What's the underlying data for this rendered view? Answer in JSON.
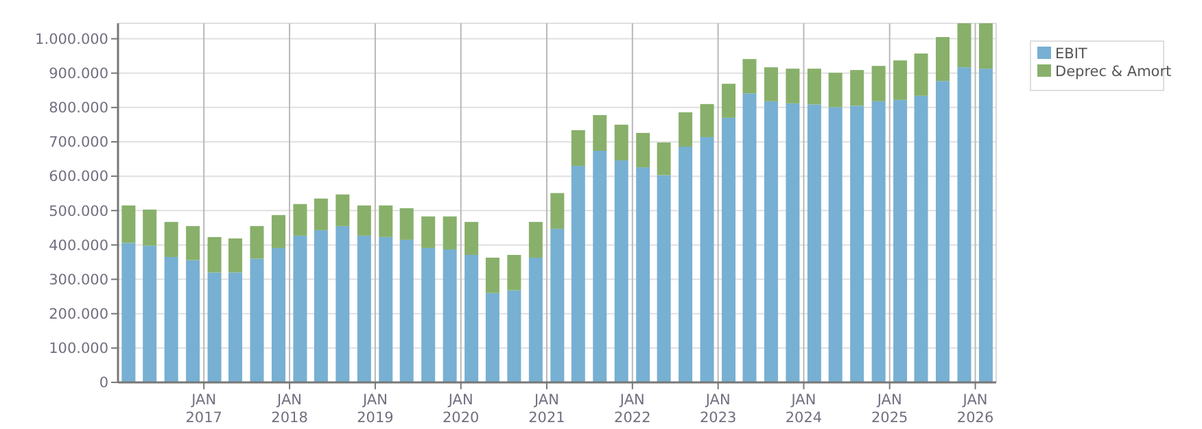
{
  "chart_data": {
    "type": "bar",
    "stacked": true,
    "x": [
      "2016-02-15",
      "2016-05-15",
      "2016-08-15",
      "2016-11-15",
      "2017-02-15",
      "2017-05-15",
      "2017-08-15",
      "2017-11-15",
      "2018-02-15",
      "2018-05-15",
      "2018-08-15",
      "2018-11-15",
      "2019-02-15",
      "2019-05-15",
      "2019-08-15",
      "2019-11-15",
      "2020-02-15",
      "2020-05-15",
      "2020-08-15",
      "2020-11-15",
      "2021-02-15",
      "2021-05-15",
      "2021-08-15",
      "2021-11-15",
      "2022-02-15",
      "2022-05-15",
      "2022-08-15",
      "2022-11-15",
      "2023-02-15",
      "2023-05-15",
      "2023-08-15",
      "2023-11-15",
      "2024-02-15",
      "2024-05-15",
      "2024-08-15",
      "2024-11-15",
      "2025-02-15",
      "2025-05-15",
      "2025-08-15",
      "2025-11-15",
      "2026-02-15"
    ],
    "series": [
      {
        "name": "EBIT",
        "color": "#77b0d2",
        "values": [
          406000,
          398000,
          365000,
          356000,
          320000,
          320000,
          360000,
          391000,
          427000,
          443000,
          455000,
          427000,
          423000,
          415000,
          391000,
          387000,
          371000,
          260000,
          268000,
          363000,
          447000,
          630000,
          674000,
          646000,
          626000,
          603000,
          686000,
          714000,
          770000,
          841000,
          818000,
          812000,
          809000,
          801000,
          805000,
          818000,
          822000,
          834000,
          877000,
          917000,
          913000
        ]
      },
      {
        "name": "Deprec & Amort",
        "color": "#88b06a",
        "values": [
          109000,
          105000,
          102000,
          99000,
          103000,
          99000,
          95000,
          96000,
          92000,
          92000,
          92000,
          88000,
          92000,
          92000,
          92000,
          96000,
          96000,
          103000,
          103000,
          104000,
          104000,
          104000,
          104000,
          104000,
          100000,
          95000,
          100000,
          96000,
          99000,
          100000,
          99000,
          101000,
          104000,
          100000,
          104000,
          103000,
          115000,
          123000,
          128000,
          128000,
          132000
        ]
      }
    ],
    "xlim": [
      "2016-01-01",
      "2026-03-31"
    ],
    "xticks": [
      {
        "value": "2017-01-01",
        "label": "JAN\n2017"
      },
      {
        "value": "2018-01-01",
        "label": "JAN\n2018"
      },
      {
        "value": "2019-01-01",
        "label": "JAN\n2019"
      },
      {
        "value": "2020-01-01",
        "label": "JAN\n2020"
      },
      {
        "value": "2021-01-01",
        "label": "JAN\n2021"
      },
      {
        "value": "2022-01-01",
        "label": "JAN\n2022"
      },
      {
        "value": "2023-01-01",
        "label": "JAN\n2023"
      },
      {
        "value": "2024-01-01",
        "label": "JAN\n2024"
      },
      {
        "value": "2025-01-01",
        "label": "JAN\n2025"
      },
      {
        "value": "2026-01-01",
        "label": "JAN\n2026"
      }
    ],
    "ylim": [
      0,
      1045000
    ],
    "yticks": [
      0,
      {
        "value": 100000,
        "label": "100.000"
      },
      {
        "value": 200000,
        "label": "200.000"
      },
      {
        "value": 300000,
        "label": "300.000"
      },
      {
        "value": 400000,
        "label": "400.000"
      },
      {
        "value": 500000,
        "label": "500.000"
      },
      {
        "value": 600000,
        "label": "600.000"
      },
      {
        "value": 700000,
        "label": "700.000"
      },
      {
        "value": 800000,
        "label": "800.000"
      },
      {
        "value": 900000,
        "label": "900.000"
      },
      {
        "value": 1000000,
        "label": "1.000.000"
      }
    ],
    "grid": true,
    "legend": "top right"
  }
}
